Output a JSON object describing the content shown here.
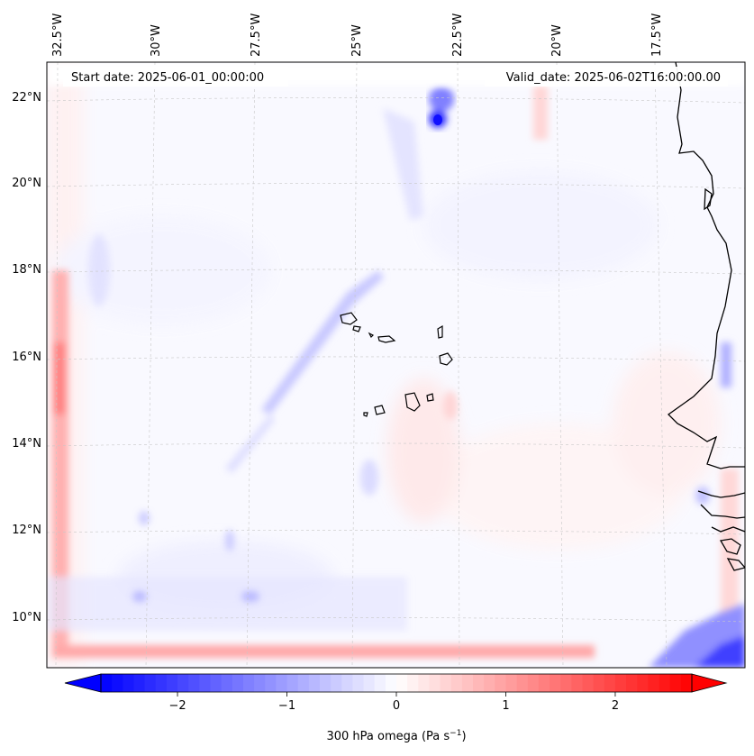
{
  "header": {
    "start_date": "Start date: 2025-06-01_00:00:00",
    "valid_date": "Valid_date: 2025-06-02T16:00:00.00"
  },
  "map": {
    "lon_ticks": [
      "32.5°W",
      "30°W",
      "27.5°W",
      "25°W",
      "22.5°W",
      "20°W",
      "17.5°W"
    ],
    "lat_ticks": [
      "22°N",
      "20°N",
      "18°N",
      "16°N",
      "14°N",
      "12°N",
      "10°N"
    ],
    "field": "300 hPa omega",
    "colormap": "bwr",
    "colors": {
      "negative": "#0000ff",
      "zero": "#ffffff",
      "positive": "#ff0000",
      "coast": "#000000"
    }
  },
  "colorbar": {
    "label": "300 hPa omega (Pa s",
    "label_exp": "−1",
    "label_end": ")",
    "range": [
      -2.7,
      2.7
    ],
    "extend": "both",
    "ticks": [
      {
        "value": -2,
        "label": "−2"
      },
      {
        "value": -1,
        "label": "−1"
      },
      {
        "value": 0,
        "label": "0"
      },
      {
        "value": 1,
        "label": "1"
      },
      {
        "value": 2,
        "label": "2"
      }
    ]
  }
}
